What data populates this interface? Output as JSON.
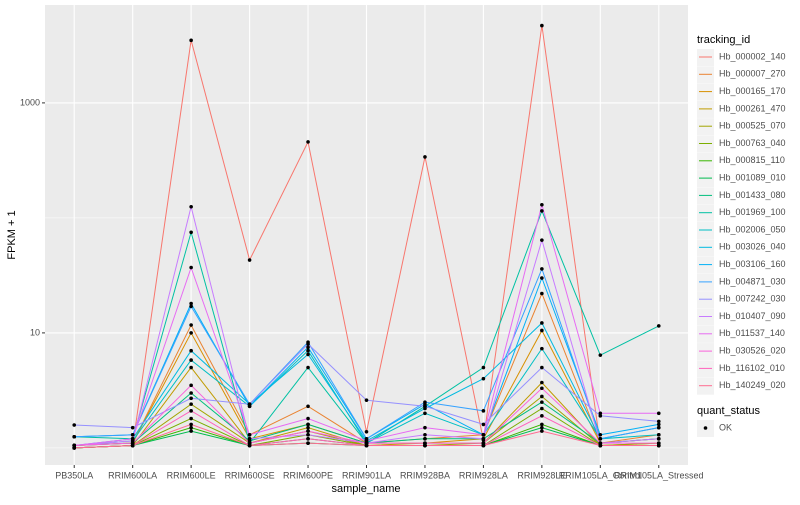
{
  "chart_data": {
    "type": "line",
    "xlabel": "sample_name",
    "ylabel": "FPKM + 1",
    "categories": [
      "PB350LA",
      "RRIM600LA",
      "RRIM600LE",
      "RRIM600SE",
      "RRIM600PE",
      "RRIM901LA",
      "RRIM928BA",
      "RRIM928LA",
      "RRIM928LE",
      "RRIM105LA_Control",
      "RRIM105LA_Stressed"
    ],
    "log_y": true,
    "ylim": [
      0.71,
      7100
    ],
    "yticks": [
      10,
      1000
    ],
    "minor_yticks": [
      1,
      100
    ],
    "grid": true,
    "point_color": "#000000",
    "legend_position": "right",
    "legend_title": "tracking_id",
    "series": [
      {
        "name": "Hb_000002_140",
        "color": "#F8766D",
        "values": [
          1,
          1.05,
          3500,
          43,
          458,
          1.38,
          339,
          1.17,
          4700,
          1.05,
          1.05
        ]
      },
      {
        "name": "Hb_000007_270",
        "color": "#EA8331",
        "values": [
          1.05,
          1.1,
          11.7,
          1.3,
          2.3,
          1.1,
          1.2,
          1.3,
          22,
          1.1,
          1.3
        ]
      },
      {
        "name": "Hb_000165_170",
        "color": "#D89000",
        "values": [
          1.05,
          1.1,
          10,
          1.2,
          1.6,
          1.1,
          1.1,
          1.2,
          10.5,
          1.1,
          1.2
        ]
      },
      {
        "name": "Hb_000261_470",
        "color": "#C09B00",
        "values": [
          1,
          1.05,
          5,
          1.1,
          1.5,
          1.05,
          1.1,
          1.1,
          3.7,
          1.05,
          1.1
        ]
      },
      {
        "name": "Hb_000525_070",
        "color": "#A3A500",
        "values": [
          1,
          1.05,
          2.4,
          1.1,
          1.4,
          1.05,
          1.05,
          1.1,
          2.8,
          1.05,
          1.1
        ]
      },
      {
        "name": "Hb_000763_040",
        "color": "#7CAE00",
        "values": [
          1,
          1.05,
          1.8,
          1.05,
          1.3,
          1.05,
          1.05,
          1.05,
          2.2,
          1.05,
          1.05
        ]
      },
      {
        "name": "Hb_000815_110",
        "color": "#39B600",
        "values": [
          1,
          1.05,
          1.5,
          1.05,
          1.2,
          1.05,
          1.05,
          1.05,
          1.6,
          1.05,
          1.05
        ]
      },
      {
        "name": "Hb_001089_010",
        "color": "#00BB4E",
        "values": [
          1,
          1.05,
          1.4,
          1.05,
          1.1,
          1.05,
          1.05,
          1.05,
          1.5,
          1.05,
          1.05
        ]
      },
      {
        "name": "Hb_001433_080",
        "color": "#00BF7D",
        "values": [
          1.05,
          1.1,
          3,
          1.15,
          1.6,
          1.1,
          1.2,
          1.2,
          2.5,
          1.1,
          1.2
        ]
      },
      {
        "name": "Hb_001969_100",
        "color": "#00C1A3",
        "values": [
          1.25,
          1.2,
          75,
          1.1,
          5,
          1.1,
          2.3,
          5,
          115,
          6.4,
          11.5
        ]
      },
      {
        "name": "Hb_002006_050",
        "color": "#00BFC4",
        "values": [
          1.05,
          1.15,
          5.8,
          2.3,
          7,
          1.1,
          2.0,
          1.3,
          7.3,
          1.2,
          1.3
        ]
      },
      {
        "name": "Hb_003026_040",
        "color": "#00BAE0",
        "values": [
          1.05,
          1.2,
          7,
          2.4,
          6.5,
          1.15,
          2.2,
          4,
          12.2,
          1.2,
          1.5
        ]
      },
      {
        "name": "Hb_003106_160",
        "color": "#00B0F6",
        "values": [
          1.25,
          1.3,
          18,
          2.3,
          7.5,
          1.2,
          2.4,
          1.3,
          30,
          1.3,
          1.6
        ]
      },
      {
        "name": "Hb_004871_030",
        "color": "#35A2FF",
        "values": [
          1.25,
          1.3,
          17,
          2.4,
          8.3,
          1.2,
          2.5,
          2.1,
          36,
          1.2,
          1.5
        ]
      },
      {
        "name": "Hb_007242_030",
        "color": "#9590FF",
        "values": [
          1.58,
          1.5,
          2.7,
          2.4,
          8,
          2.6,
          2.3,
          1.6,
          5,
          1.9,
          1.7
        ]
      },
      {
        "name": "Hb_010407_090",
        "color": "#C77CFF",
        "values": [
          1.05,
          1.15,
          125,
          1.2,
          1.3,
          1.1,
          1.3,
          1.2,
          64,
          1.1,
          1.2
        ]
      },
      {
        "name": "Hb_011537_140",
        "color": "#E76BF3",
        "values": [
          1.05,
          1.2,
          37,
          1.3,
          1.8,
          1.15,
          1.5,
          1.3,
          130,
          2.0,
          2.0
        ]
      },
      {
        "name": "Hb_030526_020",
        "color": "#FA62DB",
        "values": [
          1.05,
          1.1,
          3.5,
          1.1,
          1.4,
          1.1,
          1.1,
          1.1,
          3.3,
          1.1,
          1.1
        ]
      },
      {
        "name": "Hb_116102_010",
        "color": "#FF62BC",
        "values": [
          1,
          1.05,
          2.1,
          1.05,
          1.2,
          1.05,
          1.05,
          1.05,
          1.9,
          1.05,
          1.05
        ]
      },
      {
        "name": "Hb_140249_020",
        "color": "#FF6C91",
        "values": [
          1,
          1.05,
          1.6,
          1.05,
          1.1,
          1.05,
          1.05,
          1.05,
          1.4,
          1.05,
          1.05
        ]
      }
    ],
    "quant_status": {
      "title": "quant_status",
      "entries": [
        "OK"
      ]
    }
  }
}
